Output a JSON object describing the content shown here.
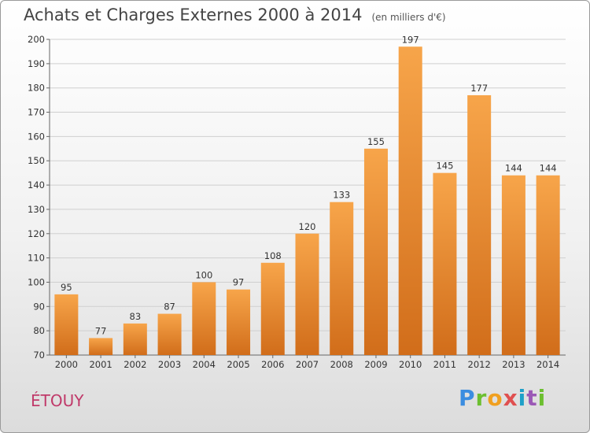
{
  "title": "Achats et Charges Externes 2000 à 2014",
  "subtitle": "(en milliers d'€)",
  "commune": "ÉTOUY",
  "logo_text": "Proxiti",
  "colors": {
    "bar_light": "#f7a54a",
    "bar_dark": "#d16d1a",
    "grid": "#cfcfcf",
    "commune": "#c03a6a"
  },
  "chart_data": {
    "type": "bar",
    "categories": [
      "2000",
      "2001",
      "2002",
      "2003",
      "2004",
      "2005",
      "2006",
      "2007",
      "2008",
      "2009",
      "2010",
      "2011",
      "2012",
      "2013",
      "2014"
    ],
    "values": [
      95,
      77,
      83,
      87,
      100,
      97,
      108,
      120,
      133,
      155,
      197,
      145,
      177,
      144,
      144
    ],
    "ylim": [
      70,
      200
    ],
    "yticks": [
      70,
      80,
      90,
      100,
      110,
      120,
      130,
      140,
      150,
      160,
      170,
      180,
      190,
      200
    ],
    "grid": true
  }
}
